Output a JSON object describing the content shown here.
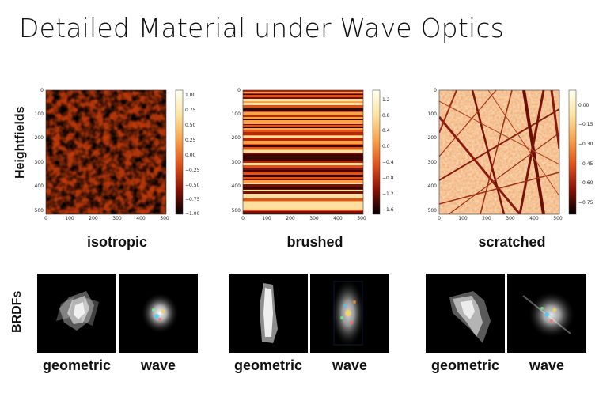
{
  "slide": {
    "title": "Detailed Material under Wave Optics",
    "row_labels": {
      "heightfields": "Heightfields",
      "brdfs": "BRDFs"
    }
  },
  "heightfields": [
    {
      "id": "isotropic",
      "caption": "isotropic",
      "x_ticks": [
        "0",
        "100",
        "200",
        "300",
        "400",
        "500"
      ],
      "y_ticks": [
        "0",
        "100",
        "200",
        "300",
        "400",
        "500"
      ],
      "colorbar_ticks": [
        "1.00",
        "0.75",
        "0.50",
        "0.25",
        "0.00",
        "−0.25",
        "−0.50",
        "−0.75",
        "−1.00"
      ]
    },
    {
      "id": "brushed",
      "caption": "brushed",
      "x_ticks": [
        "0",
        "100",
        "200",
        "300",
        "400",
        "500"
      ],
      "y_ticks": [
        "0",
        "100",
        "200",
        "300",
        "400",
        "500"
      ],
      "colorbar_ticks": [
        "1.2",
        "0.8",
        "0.4",
        "0.0",
        "−0.4",
        "−0.8",
        "−1.2",
        "−1.6"
      ]
    },
    {
      "id": "scratched",
      "caption": "scratched",
      "x_ticks": [
        "0",
        "100",
        "200",
        "300",
        "400",
        "500"
      ],
      "y_ticks": [
        "0",
        "100",
        "200",
        "300",
        "400",
        "500"
      ],
      "colorbar_ticks": [
        "0.00",
        "−0.15",
        "−0.30",
        "−0.45",
        "−0.60",
        "−0.75"
      ]
    }
  ],
  "brdfs": [
    {
      "id": "isotropic",
      "left_label": "geometric",
      "right_label": "wave"
    },
    {
      "id": "brushed",
      "left_label": "geometric",
      "right_label": "wave"
    },
    {
      "id": "scratched",
      "left_label": "geometric",
      "right_label": "wave"
    }
  ]
}
